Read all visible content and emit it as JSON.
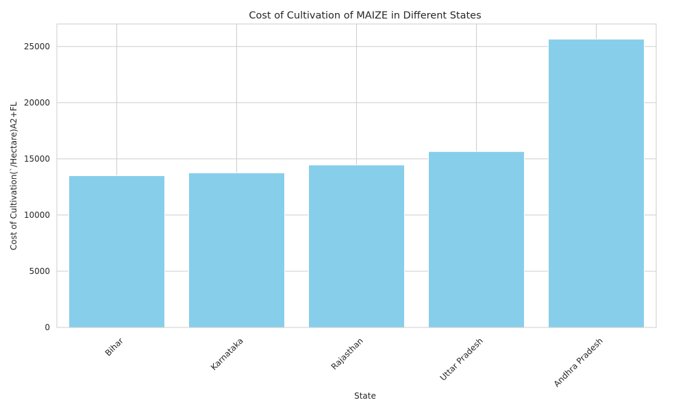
{
  "chart_data": {
    "type": "bar",
    "title": "Cost of Cultivation of MAIZE in Different States",
    "xlabel": "State",
    "ylabel": "Cost of Cultivation(`/Hectare)A2+FL",
    "categories": [
      "Bihar",
      "Karnataka",
      "Rajasthan",
      "Uttar Pradesh",
      "Andhra Pradesh"
    ],
    "values": [
      13500,
      13750,
      14450,
      15650,
      25650
    ],
    "ylim": [
      0,
      27000
    ],
    "yticks": [
      0,
      5000,
      10000,
      15000,
      20000,
      25000
    ],
    "ytick_labels": [
      "0",
      "5000",
      "10000",
      "15000",
      "20000",
      "25000"
    ],
    "grid": true,
    "bar_color": "#87CEEB",
    "grid_color": "#cccccc",
    "spine_color": "#cccccc",
    "text_color": "#262626"
  }
}
